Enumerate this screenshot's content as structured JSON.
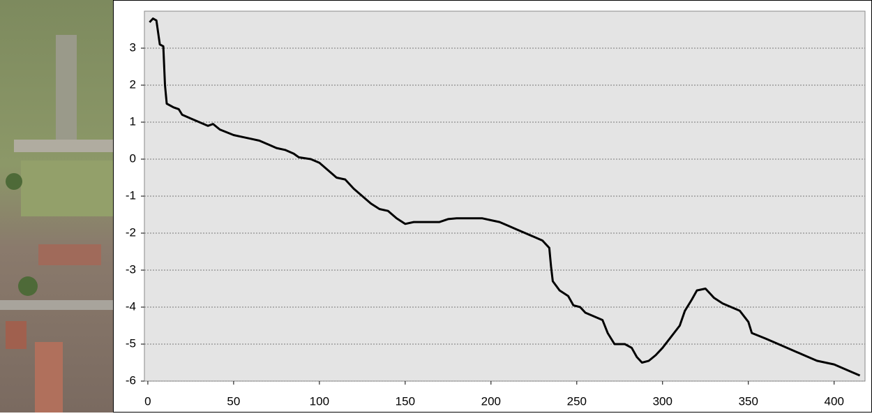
{
  "chart_data": {
    "type": "line",
    "color": "#000000",
    "grid": true,
    "xlim": [
      -2,
      418
    ],
    "ylim": [
      -6,
      4
    ],
    "xticks": [
      0,
      50,
      100,
      150,
      200,
      250,
      300,
      350,
      400
    ],
    "yticks": [
      -6,
      -5,
      -4,
      -3,
      -2,
      -1,
      0,
      1,
      2,
      3
    ],
    "x": [
      1,
      3,
      5,
      7,
      9,
      10,
      11,
      15,
      18,
      20,
      25,
      30,
      35,
      38,
      42,
      50,
      55,
      60,
      65,
      70,
      75,
      80,
      85,
      88,
      95,
      100,
      105,
      110,
      115,
      120,
      125,
      130,
      135,
      140,
      145,
      150,
      155,
      160,
      165,
      170,
      175,
      180,
      190,
      195,
      200,
      205,
      210,
      215,
      220,
      225,
      230,
      234,
      235,
      236,
      240,
      245,
      248,
      252,
      255,
      260,
      265,
      268,
      272,
      278,
      282,
      285,
      288,
      292,
      296,
      300,
      305,
      310,
      313,
      317,
      320,
      325,
      330,
      335,
      340,
      345,
      350,
      352,
      360,
      370,
      380,
      390,
      400,
      410,
      415
    ],
    "values": [
      3.7,
      3.8,
      3.75,
      3.1,
      3.05,
      2.0,
      1.5,
      1.4,
      1.35,
      1.2,
      1.1,
      1.0,
      0.9,
      0.95,
      0.8,
      0.65,
      0.6,
      0.55,
      0.5,
      0.4,
      0.3,
      0.25,
      0.15,
      0.05,
      0,
      -0.1,
      -0.3,
      -0.5,
      -0.55,
      -0.8,
      -1.0,
      -1.2,
      -1.35,
      -1.4,
      -1.6,
      -1.75,
      -1.7,
      -1.7,
      -1.7,
      -1.7,
      -1.62,
      -1.6,
      -1.6,
      -1.6,
      -1.65,
      -1.7,
      -1.8,
      -1.9,
      -2.0,
      -2.1,
      -2.2,
      -2.4,
      -2.9,
      -3.3,
      -3.55,
      -3.7,
      -3.95,
      -4.0,
      -4.15,
      -4.25,
      -4.35,
      -4.7,
      -5.0,
      -5.0,
      -5.1,
      -5.35,
      -5.5,
      -5.45,
      -5.3,
      -5.1,
      -4.8,
      -4.5,
      -4.1,
      -3.8,
      -3.55,
      -3.5,
      -3.75,
      -3.9,
      -4.0,
      -4.1,
      -4.4,
      -4.7,
      -4.85,
      -5.05,
      -5.25,
      -5.45,
      -5.55,
      -5.75,
      -5.85
    ]
  }
}
